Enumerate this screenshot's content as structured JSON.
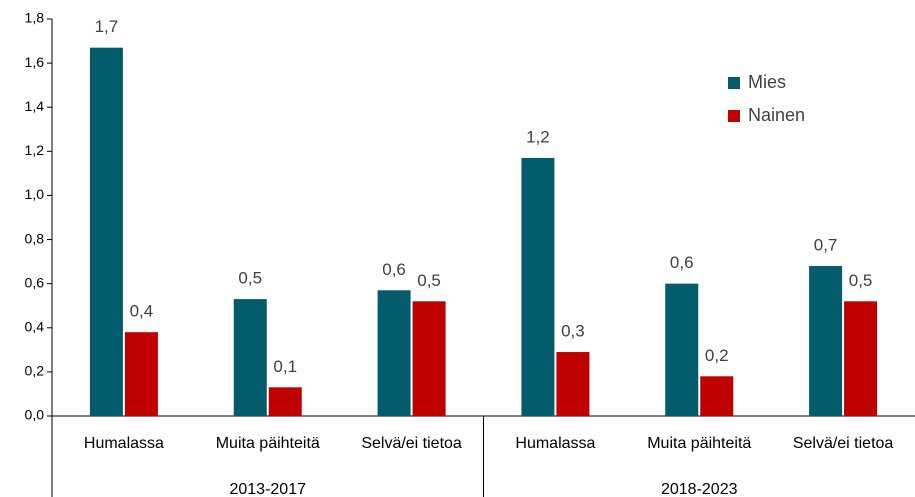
{
  "chart_data": {
    "type": "bar",
    "categories": [
      "Humalassa",
      "Muita päihteitä",
      "Selvä/ei tietoa",
      "Humalassa",
      "Muita päihteitä",
      "Selvä/ei tietoa"
    ],
    "groups": [
      "2013-2017",
      "2018-2023"
    ],
    "series": [
      {
        "name": "Mies",
        "color": "#025c6b",
        "values": [
          1.67,
          0.53,
          0.57,
          1.17,
          0.6,
          0.68
        ],
        "value_labels": [
          "1,7",
          "0,5",
          "0,6",
          "1,2",
          "0,6",
          "0,7"
        ]
      },
      {
        "name": "Nainen",
        "color": "#c00000",
        "values": [
          0.38,
          0.13,
          0.52,
          0.29,
          0.18,
          0.52
        ],
        "value_labels": [
          "0,4",
          "0,1",
          "0,5",
          "0,3",
          "0,2",
          "0,5"
        ]
      }
    ],
    "ylim": [
      0,
      1.8
    ],
    "yticks": [
      {
        "value": 0,
        "label": "0,0"
      },
      {
        "value": 0.2,
        "label": "0,2"
      },
      {
        "value": 0.4,
        "label": "0,4"
      },
      {
        "value": 0.6,
        "label": "0,6"
      },
      {
        "value": 0.8,
        "label": "0,8"
      },
      {
        "value": 1.0,
        "label": "1,0"
      },
      {
        "value": 1.2,
        "label": "1,2"
      },
      {
        "value": 1.4,
        "label": "1,4"
      },
      {
        "value": 1.6,
        "label": "1,6"
      },
      {
        "value": 1.8,
        "label": "1,8"
      }
    ],
    "grid": false,
    "legend": "upper right"
  }
}
